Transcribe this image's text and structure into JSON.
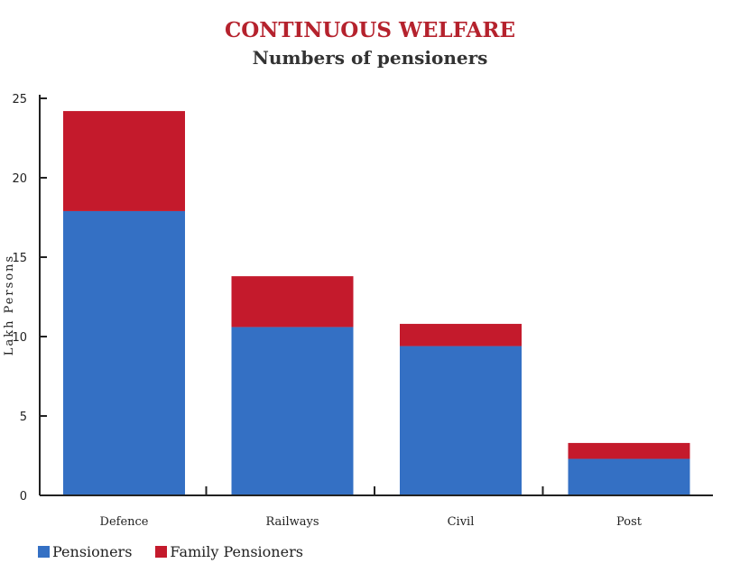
{
  "chart_data": {
    "type": "bar",
    "stacked": true,
    "title": "CONTINUOUS WELFARE",
    "subtitle": "Numbers of pensioners",
    "xlabel": "",
    "ylabel": "Lakh Persons",
    "ylim": [
      0,
      25
    ],
    "yticks": [
      0,
      5,
      10,
      15,
      20,
      25
    ],
    "categories": [
      "Defence",
      "Railways",
      "Civil",
      "Post"
    ],
    "series": [
      {
        "name": "Pensioners",
        "color": "#3470c4",
        "values": [
          17.9,
          10.6,
          9.4,
          2.3
        ]
      },
      {
        "name": "Family Pensioners",
        "color": "#c41a2c",
        "values": [
          6.3,
          3.2,
          1.4,
          1.0
        ]
      }
    ],
    "grid": false,
    "legend": "bottom-left"
  }
}
